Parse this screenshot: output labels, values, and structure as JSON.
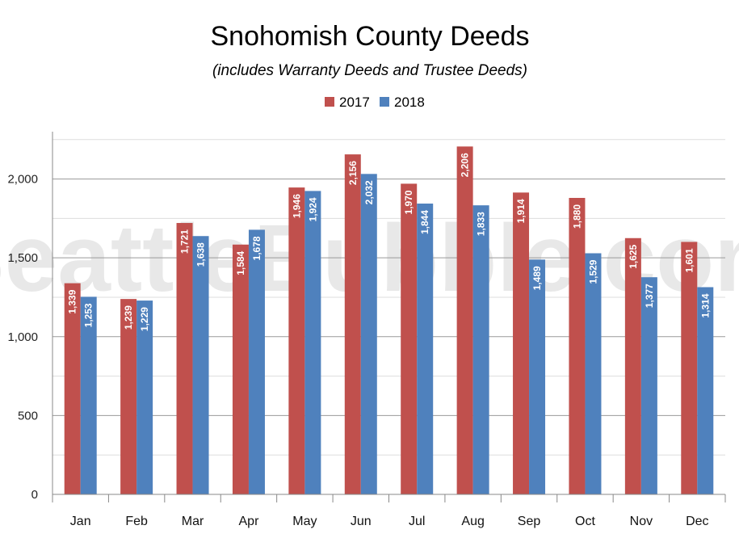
{
  "watermark": "SeattleBubble.com",
  "chart_data": {
    "type": "bar",
    "title": "Snohomish County Deeds",
    "subtitle": "(includes Warranty Deeds and Trustee Deeds)",
    "categories": [
      "Jan",
      "Feb",
      "Mar",
      "Apr",
      "May",
      "Jun",
      "Jul",
      "Aug",
      "Sep",
      "Oct",
      "Nov",
      "Dec"
    ],
    "series": [
      {
        "name": "2017",
        "color": "#c0504d",
        "values": [
          1339,
          1239,
          1721,
          1584,
          1946,
          2156,
          1970,
          2206,
          1914,
          1880,
          1625,
          1601
        ]
      },
      {
        "name": "2018",
        "color": "#4f81bd",
        "values": [
          1253,
          1229,
          1638,
          1678,
          1924,
          2032,
          1844,
          1833,
          1489,
          1529,
          1377,
          1314
        ]
      }
    ],
    "data_labels": [
      [
        "1,339",
        "1,239",
        "1,721",
        "1,584",
        "1,946",
        "2,156",
        "1,970",
        "2,206",
        "1,914",
        "1,880",
        "1,625",
        "1,601"
      ],
      [
        "1,253",
        "1,229",
        "1,638",
        "1,678",
        "1,924",
        "2,032",
        "1,844",
        "1,833",
        "1,489",
        "1,529",
        "1,377",
        "1,314"
      ]
    ],
    "yticks": [
      0,
      500,
      1000,
      1500,
      2000
    ],
    "ytick_labels": [
      "0",
      "500",
      "1,000",
      "1,500",
      "2,000"
    ],
    "ylim": [
      0,
      2300
    ],
    "xlabel": "",
    "ylabel": "",
    "legend_position": "top-center",
    "grid": true
  }
}
